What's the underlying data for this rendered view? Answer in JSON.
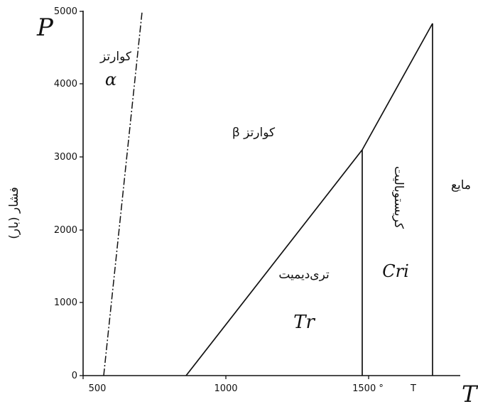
{
  "chart_data": {
    "type": "phase-diagram",
    "y_axis": {
      "symbol": "P",
      "label": "فشار (بار)",
      "ticks": [
        "0",
        "1000",
        "2000",
        "3000",
        "4000",
        "5000"
      ]
    },
    "x_axis": {
      "symbol": "T",
      "ticks": [
        "500",
        "1000",
        "1500 °",
        "T"
      ]
    },
    "regions": {
      "alpha_quartz": {
        "label": "کوارتز",
        "symbol": "α"
      },
      "beta_quartz": {
        "label": "کوارتز β"
      },
      "tridymite": {
        "label": "تری‌دیمیت",
        "symbol": "Tr"
      },
      "cristobalite": {
        "label": "کریستوبالیت",
        "symbol": "Cri"
      },
      "liquid": {
        "label": "مایع"
      }
    },
    "boundaries": {
      "alpha_beta": [
        [
          555,
          0
        ],
        [
          690,
          5000
        ]
      ],
      "beta_tridymite": [
        [
          855,
          0
        ],
        [
          1470,
          3100
        ]
      ],
      "beta_cristobalite": [
        [
          1470,
          3100
        ],
        [
          1715,
          4800
        ]
      ],
      "tridymite_cristobalite": [
        [
          1470,
          0
        ],
        [
          1470,
          3100
        ]
      ],
      "cristobalite_liquid": [
        [
          1715,
          0
        ],
        [
          1715,
          4800
        ]
      ]
    },
    "xlim": [
      500,
      1780
    ],
    "ylim": [
      0,
      5000
    ]
  }
}
